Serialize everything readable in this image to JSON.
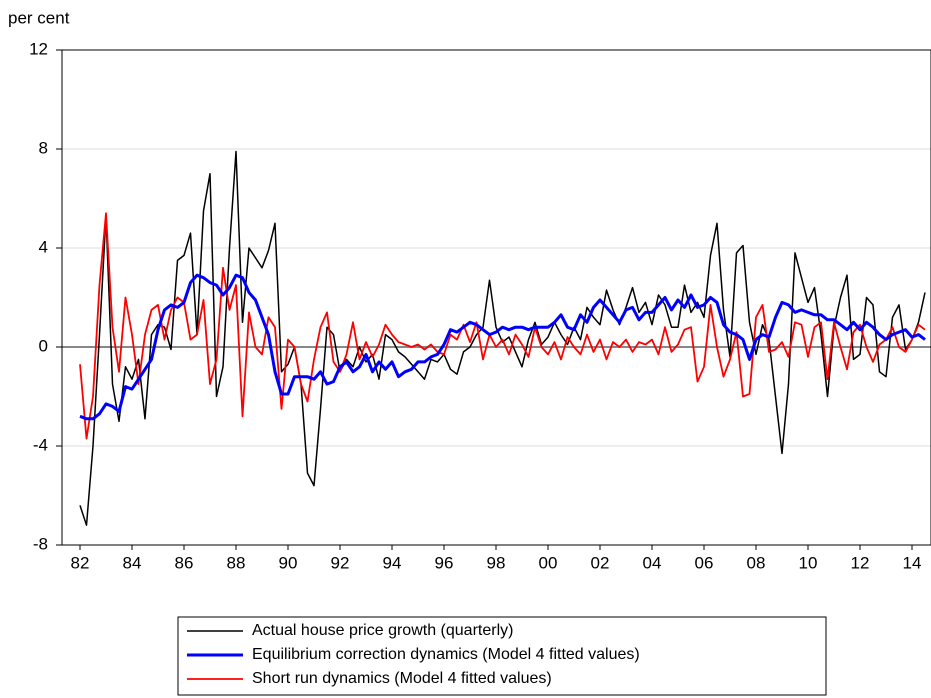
{
  "chart_data": {
    "type": "line",
    "y_label": "per cent",
    "categories": [
      "82",
      null,
      null,
      null,
      null,
      null,
      null,
      null,
      "84",
      null,
      null,
      null,
      null,
      null,
      null,
      null,
      "86",
      null,
      null,
      null,
      null,
      null,
      null,
      null,
      "88",
      null,
      null,
      null,
      null,
      null,
      null,
      null,
      "90",
      null,
      null,
      null,
      null,
      null,
      null,
      null,
      "92",
      null,
      null,
      null,
      null,
      null,
      null,
      null,
      "94",
      null,
      null,
      null,
      null,
      null,
      null,
      null,
      "96",
      null,
      null,
      null,
      null,
      null,
      null,
      null,
      "98",
      null,
      null,
      null,
      null,
      null,
      null,
      null,
      "00",
      null,
      null,
      null,
      null,
      null,
      null,
      null,
      "02",
      null,
      null,
      null,
      null,
      null,
      null,
      null,
      "04",
      null,
      null,
      null,
      null,
      null,
      null,
      null,
      "06",
      null,
      null,
      null,
      null,
      null,
      null,
      null,
      "08",
      null,
      null,
      null,
      null,
      null,
      null,
      null,
      "10",
      null,
      null,
      null,
      null,
      null,
      null,
      null,
      "12",
      null,
      null,
      null,
      null,
      null,
      null,
      null,
      "14",
      null,
      null
    ],
    "series": [
      {
        "name": "Actual house price growth (quarterly)",
        "color": "#000000",
        "width": 1.5,
        "values": [
          -6.4,
          -7.2,
          -4.0,
          0.5,
          5.3,
          -1.5,
          -3.0,
          -0.8,
          -1.3,
          -0.5,
          -2.9,
          0.5,
          0.9,
          0.8,
          -0.1,
          3.5,
          3.7,
          4.6,
          0.5,
          5.5,
          7.0,
          -2.0,
          -0.8,
          4.0,
          7.9,
          1.0,
          4.0,
          3.6,
          3.2,
          3.9,
          5.0,
          -1.0,
          -0.7,
          0.0,
          -1.5,
          -5.1,
          -5.6,
          -2.5,
          0.8,
          0.5,
          -1.0,
          -0.5,
          -0.8,
          0.0,
          -0.6,
          -0.3,
          -1.3,
          0.5,
          0.3,
          -0.2,
          -0.4,
          -0.7,
          -1.0,
          -1.3,
          -0.5,
          -0.6,
          -0.3,
          -0.9,
          -1.1,
          -0.2,
          0.0,
          0.5,
          0.8,
          2.7,
          0.8,
          0.2,
          0.4,
          -0.2,
          -0.8,
          0.3,
          1.0,
          0.1,
          0.4,
          1.0,
          0.5,
          0.1,
          0.8,
          0.3,
          1.6,
          1.2,
          0.9,
          2.3,
          1.5,
          0.9,
          1.6,
          2.4,
          1.4,
          1.8,
          0.9,
          2.1,
          1.7,
          0.8,
          0.8,
          2.5,
          1.4,
          1.8,
          1.2,
          3.7,
          5.0,
          1.5,
          -0.4,
          3.8,
          4.1,
          1.0,
          -0.3,
          0.9,
          0.3,
          -2.0,
          -4.3,
          -1.5,
          3.8,
          2.8,
          1.8,
          2.4,
          0.5,
          -2.0,
          0.8,
          2.0,
          2.9,
          -0.5,
          -0.3,
          2.0,
          1.7,
          -1.0,
          -1.2,
          1.2,
          1.7,
          -0.1,
          0.3,
          1.0,
          2.2
        ]
      },
      {
        "name": "Equilibrium correction dynamics (Model 4 fitted values)",
        "color": "#0000ff",
        "width": 3,
        "values": [
          -2.8,
          -2.9,
          -2.9,
          -2.7,
          -2.3,
          -2.4,
          -2.6,
          -1.6,
          -1.7,
          -1.3,
          -0.9,
          -0.5,
          0.7,
          1.5,
          1.7,
          1.6,
          1.8,
          2.6,
          2.9,
          2.8,
          2.6,
          2.5,
          2.1,
          2.4,
          2.9,
          2.8,
          2.2,
          1.9,
          1.2,
          0.5,
          -1.0,
          -1.9,
          -1.9,
          -1.2,
          -1.2,
          -1.2,
          -1.3,
          -1.0,
          -1.5,
          -1.4,
          -0.8,
          -0.6,
          -1.0,
          -0.8,
          -0.3,
          -1.0,
          -0.6,
          -0.9,
          -0.6,
          -1.2,
          -1.0,
          -0.9,
          -0.6,
          -0.6,
          -0.4,
          -0.3,
          0.1,
          0.7,
          0.6,
          0.8,
          1.0,
          0.9,
          0.7,
          0.5,
          0.6,
          0.8,
          0.7,
          0.8,
          0.8,
          0.7,
          0.8,
          0.8,
          0.8,
          1.0,
          1.3,
          0.8,
          0.7,
          1.3,
          1.0,
          1.6,
          1.9,
          1.6,
          1.3,
          1.0,
          1.5,
          1.6,
          1.1,
          1.4,
          1.4,
          1.7,
          2.0,
          1.5,
          1.9,
          1.6,
          2.1,
          1.6,
          1.7,
          2.0,
          1.8,
          0.9,
          0.6,
          0.5,
          0.3,
          -0.5,
          0.3,
          0.5,
          0.4,
          1.2,
          1.8,
          1.7,
          1.4,
          1.5,
          1.4,
          1.3,
          1.3,
          1.1,
          1.1,
          0.9,
          0.7,
          1.0,
          0.7,
          1.0,
          0.8,
          0.5,
          0.3,
          0.5,
          0.6,
          0.7,
          0.4,
          0.5,
          0.3
        ]
      },
      {
        "name": "Short run dynamics (Model 4 fitted values)",
        "color": "#ff0000",
        "width": 1.8,
        "values": [
          -0.7,
          -3.7,
          -2.0,
          2.5,
          5.4,
          0.8,
          -1.0,
          2.0,
          0.5,
          -1.5,
          0.5,
          1.5,
          1.7,
          0.3,
          1.5,
          2.0,
          1.8,
          0.3,
          0.5,
          1.9,
          -1.5,
          -0.5,
          3.2,
          1.5,
          2.5,
          -2.8,
          1.4,
          0.0,
          -0.3,
          1.2,
          0.8,
          -2.5,
          0.3,
          0.0,
          -1.5,
          -2.2,
          -0.5,
          0.8,
          1.4,
          -0.6,
          -1.0,
          -0.3,
          1.0,
          -0.5,
          0.2,
          -0.4,
          0.1,
          0.9,
          0.5,
          0.2,
          0.1,
          0.0,
          0.1,
          -0.1,
          0.1,
          -0.2,
          -0.3,
          0.5,
          0.3,
          0.9,
          0.2,
          1.0,
          -0.5,
          0.5,
          0.0,
          0.3,
          -0.3,
          0.5,
          0.1,
          -0.4,
          0.8,
          0.0,
          -0.3,
          0.2,
          -0.5,
          0.4,
          0.0,
          -0.3,
          0.5,
          -0.2,
          0.3,
          -0.5,
          0.2,
          0.0,
          0.3,
          -0.2,
          0.2,
          0.1,
          0.3,
          -0.3,
          0.8,
          -0.2,
          0.1,
          0.7,
          0.8,
          -1.4,
          -0.8,
          1.7,
          0.0,
          -1.2,
          -0.5,
          0.6,
          -2.0,
          -1.9,
          1.2,
          1.7,
          -0.2,
          -0.1,
          0.2,
          -0.4,
          1.0,
          0.9,
          -0.4,
          0.8,
          1.0,
          -1.3,
          1.0,
          0.0,
          -0.9,
          0.6,
          0.9,
          0.0,
          -0.6,
          0.1,
          0.3,
          0.8,
          0.0,
          -0.2,
          0.3,
          0.9,
          0.7
        ]
      }
    ],
    "ylim": [
      -8,
      12
    ],
    "yticks": [
      -8,
      -4,
      0,
      4,
      8,
      12
    ],
    "grid": true
  }
}
